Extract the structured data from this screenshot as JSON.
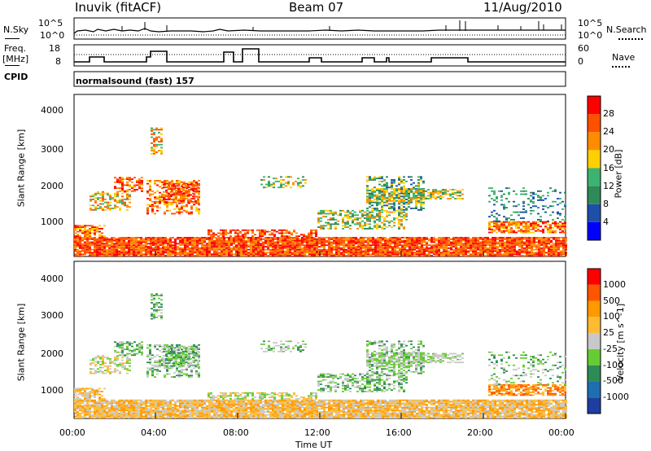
{
  "header": {
    "station": "Inuvik (fitACF)",
    "beam": "Beam 07",
    "date": "11/Aug/2010"
  },
  "top_panels": {
    "nsky_label": "N.Sky",
    "nsearch_label": "N.Search",
    "freq_label_1": "Freq.",
    "freq_label_2": "[MHz]",
    "nave_label": "Nave",
    "cpid_label": "CPID",
    "cpid_text": "normalsound (fast) 157",
    "noise_ticks": [
      "10^5",
      "10^0"
    ],
    "noise_ticks_right": [
      "10^5",
      "10^0"
    ],
    "freq_ticks": [
      "18",
      "8"
    ],
    "nave_ticks": [
      "60",
      "0"
    ]
  },
  "x_axis": {
    "label": "Time UT",
    "ticks": [
      "00:00",
      "04:00",
      "08:00",
      "12:00",
      "16:00",
      "20:00",
      "00:00"
    ]
  },
  "colors": {
    "power_scale": [
      "#0000ff",
      "#1e4fa8",
      "#2e8b57",
      "#3cb371",
      "#ffd000",
      "#ff8c00",
      "#ff5000",
      "#ff0000"
    ],
    "velocity_scale": [
      "#ff0000",
      "#ff5500",
      "#ff9900",
      "#ffbb33",
      "#c8c8c8",
      "#66cc33",
      "#2e8b57",
      "#1e6fb0",
      "#1e3fa0"
    ]
  },
  "chart_data": [
    {
      "type": "heatmap",
      "title": "Power",
      "ylabel": "Slant Range [km]",
      "xlabel": "",
      "xlim": [
        0,
        24
      ],
      "ylim": [
        180,
        4500
      ],
      "yticks": [
        "1000",
        "2000",
        "3000",
        "4000"
      ],
      "colorbar_label": "Power [dB]",
      "colorbar_ticks": [
        "4",
        "8",
        "12",
        "16",
        "20",
        "24",
        "28"
      ]
    },
    {
      "type": "heatmap",
      "title": "Velocity",
      "ylabel": "Slant Range [km]",
      "xlabel": "Time UT",
      "xlim": [
        0,
        24
      ],
      "ylim": [
        180,
        4500
      ],
      "yticks": [
        "1000",
        "2000",
        "3000",
        "4000"
      ],
      "colorbar_label": "Velocity [m s^-1]",
      "colorbar_ticks": [
        "1000",
        "500",
        "100",
        "25",
        "-25",
        "-100",
        "-500",
        "-1000"
      ]
    }
  ]
}
